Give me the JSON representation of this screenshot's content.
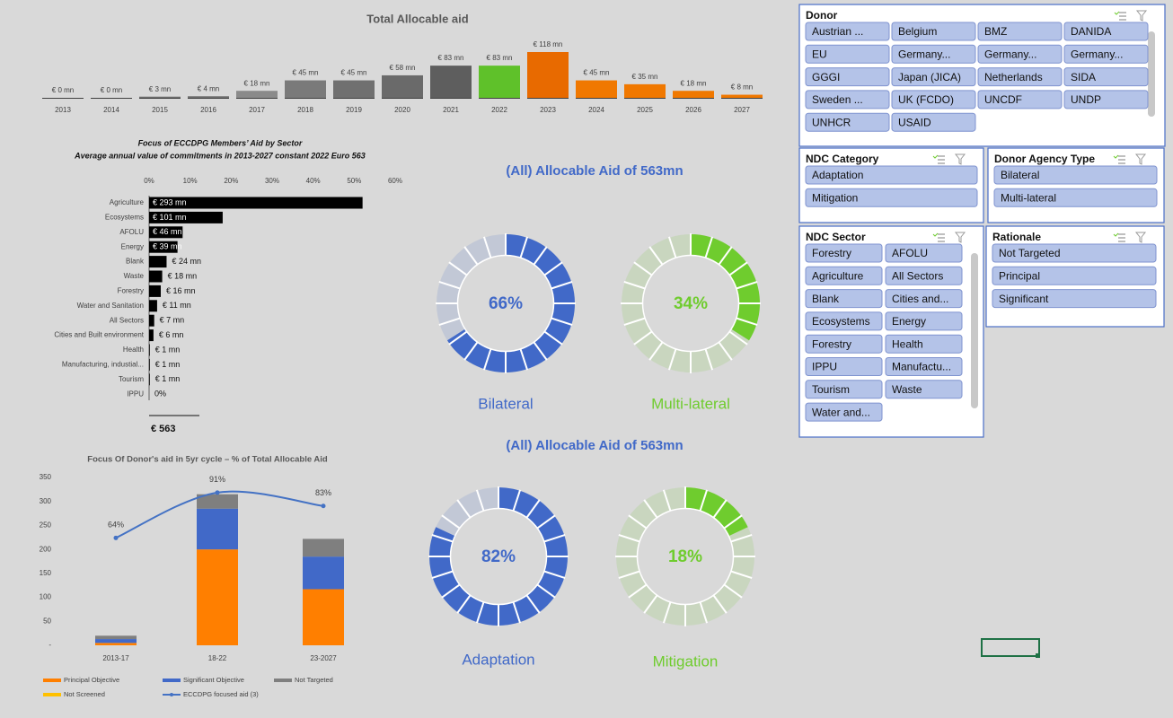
{
  "chart_data": [
    {
      "type": "bar",
      "title": "Total Allocable aid",
      "categories": [
        "2013",
        "2014",
        "2015",
        "2016",
        "2017",
        "2018",
        "2019",
        "2020",
        "2021",
        "2022",
        "2023",
        "2024",
        "2025",
        "2026",
        "2027"
      ],
      "values": [
        0,
        0,
        3,
        4,
        18,
        45,
        45,
        58,
        83,
        83,
        118,
        45,
        35,
        18,
        8
      ],
      "value_labels": [
        "€ 0 mn",
        "€ 0 mn",
        "€ 3 mn",
        "€ 4 mn",
        "€ 18 mn",
        "€ 45 mn",
        "€ 45 mn",
        "€ 58 mn",
        "€ 83 mn",
        "€ 83 mn",
        "€ 118 mn",
        "€ 45 mn",
        "€ 35 mn",
        "€ 18 mn",
        "€ 8 mn"
      ],
      "colors": [
        "#6e6e6e",
        "#6e6e6e",
        "#6e6e6e",
        "#6e6e6e",
        "#8a8a8a",
        "#7a7a7a",
        "#707070",
        "#6a6a6a",
        "#5e5e5e",
        "#5fc12a",
        "#e86a00",
        "#f07800",
        "#f07800",
        "#f07800",
        "#f07800"
      ]
    },
    {
      "type": "hbar",
      "title": "Focus of ECCDPG Members’ Aid by Sector",
      "subtitle": "Average annual value of commitments in 2013-2027 constant 2022 Euro 563",
      "categories": [
        "Agriculture",
        "Ecosystems",
        "AFOLU",
        "Energy",
        "Blank",
        "Waste",
        "Forestry",
        "Water and Sanitation",
        "All Sectors",
        "Cities and Built environment",
        "Health",
        "Manufacturing, industial...",
        "Tourism",
        "IPPU"
      ],
      "values": [
        293,
        101,
        46,
        39,
        24,
        18,
        16,
        11,
        7,
        6,
        1,
        1,
        1,
        0
      ],
      "value_labels": [
        "€ 293 mn",
        "€ 101 mn",
        "€ 46 mn",
        "€ 39 mn",
        "€ 24 mn",
        "€ 18 mn",
        "€ 16 mn",
        "€ 11 mn",
        "€ 7 mn",
        "€ 6 mn",
        "€ 1 mn",
        "€ 1 mn",
        "€ 1 mn",
        "0%"
      ],
      "color": "#000000",
      "xlim": [
        0,
        337.8
      ],
      "xticks": [
        {
          "value": 0,
          "label": "0%"
        },
        {
          "value": 56.3,
          "label": "10%"
        },
        {
          "value": 112.6,
          "label": "20%"
        },
        {
          "value": 168.9,
          "label": "30%"
        },
        {
          "value": 225.2,
          "label": "40%"
        },
        {
          "value": 281.5,
          "label": "50%"
        },
        {
          "value": 337.8,
          "label": "60%"
        }
      ],
      "annotation": "€ 563"
    },
    {
      "type": "bar_line",
      "title": "Focus Of Donor's aid in 5yr cycle – % of Total Allocable Aid",
      "categories": [
        "2013-17",
        "18-22",
        "23-2027"
      ],
      "ylim": [
        0,
        350
      ],
      "yticks": [
        {
          "value": 0,
          "label": "-"
        },
        50,
        100,
        150,
        200,
        250,
        300,
        350
      ],
      "y2lim": [
        0,
        100
      ],
      "series": [
        {
          "name": "Principal Objective",
          "color": "#ff7f00",
          "values": [
            5,
            200,
            117
          ]
        },
        {
          "name": "Significant Objective",
          "color": "#4169c8",
          "values": [
            8,
            85,
            68
          ]
        },
        {
          "name": "Not Targeted",
          "color": "#7f7f7f",
          "values": [
            7,
            30,
            37
          ]
        },
        {
          "name": "Not Screened",
          "color": "#ffc000",
          "values": [
            0,
            0,
            0
          ]
        },
        {
          "name": "ECCDPG focused aid (3)",
          "color": "#4472c4",
          "type": "line",
          "axis": "y2",
          "values": [
            64,
            91,
            83
          ],
          "value_labels": [
            "64%",
            "91%",
            "83%"
          ]
        }
      ]
    },
    {
      "type": "donut",
      "title": "(All) Allocable Aid of 563mn",
      "categories": [
        "Bilateral",
        "Multi-lateral"
      ],
      "values": [
        66,
        34
      ],
      "value_labels": [
        "66%",
        "34%"
      ],
      "colors": [
        "#4169c8",
        "#6fcc2e"
      ]
    },
    {
      "type": "donut",
      "title": "(All) Allocable Aid of 563mn",
      "categories": [
        "Adaptation",
        "Mitigation"
      ],
      "values": [
        82,
        18
      ],
      "value_labels": [
        "82%",
        "18%"
      ],
      "colors": [
        "#4169c8",
        "#6fcc2e"
      ]
    }
  ],
  "slicers": [
    {
      "title": "Donor",
      "items": [
        "Austrian ...",
        "Belgium",
        "BMZ",
        "DANIDA",
        "EU",
        "Germany...",
        "Germany...",
        "Germany...",
        "GGGI",
        "Japan (JICA)",
        "Netherlands",
        "SIDA",
        "Sweden ...",
        "UK (FCDO)",
        "UNCDF",
        "UNDP",
        "UNHCR",
        "USAID"
      ]
    },
    {
      "title": "NDC Category",
      "items": [
        "Adaptation",
        "Mitigation"
      ]
    },
    {
      "title": "Donor Agency Type",
      "items": [
        "Bilateral",
        "Multi-lateral"
      ]
    },
    {
      "title": "NDC Sector",
      "items": [
        "Forestry",
        "AFOLU",
        "Agriculture",
        "All Sectors",
        "Blank",
        "Cities and...",
        "Ecosystems",
        "Energy",
        "Forestry",
        "Health",
        "IPPU",
        "Manufactu...",
        "Tourism",
        "Waste",
        "Water and..."
      ]
    },
    {
      "title": "Rationale",
      "items": [
        "Not Targeted",
        "Principal",
        "Significant"
      ]
    }
  ]
}
